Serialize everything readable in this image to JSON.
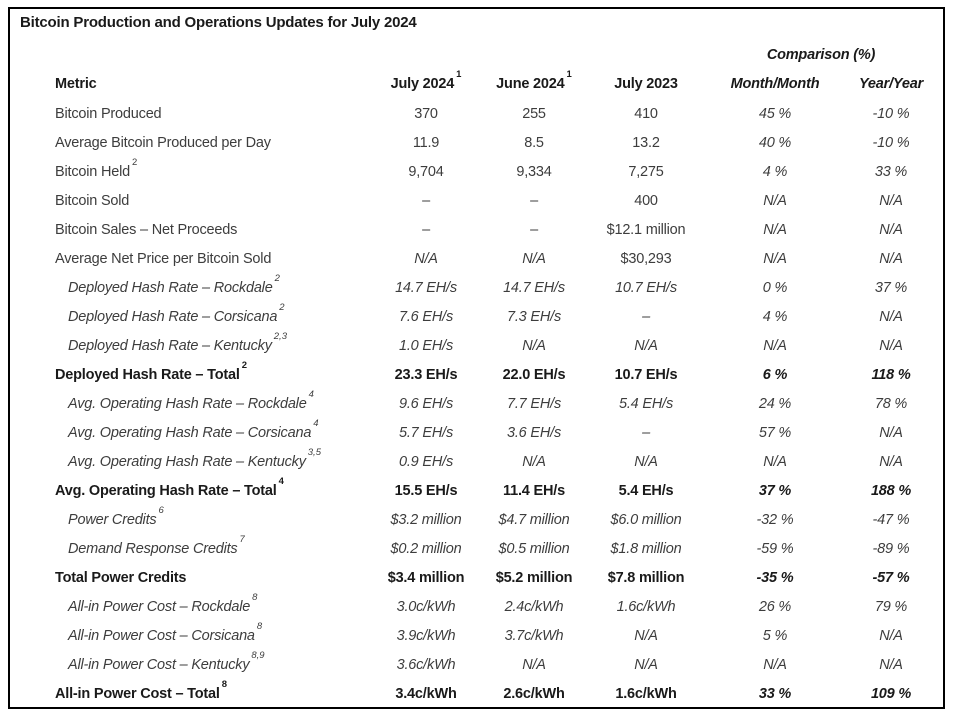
{
  "title": "Bitcoin Production and Operations Updates for July 2024",
  "table": {
    "comparison_header": "Comparison (%)",
    "columns": [
      {
        "label": "Metric",
        "sup": ""
      },
      {
        "label": "July 2024",
        "sup": "1"
      },
      {
        "label": "June 2024",
        "sup": "1"
      },
      {
        "label": "July 2023",
        "sup": ""
      },
      {
        "label": "Month/Month",
        "sup": ""
      },
      {
        "label": "Year/Year",
        "sup": ""
      }
    ],
    "rows": [
      {
        "metric": "Bitcoin Produced",
        "sup": "",
        "style": "regular",
        "values": [
          "370",
          "255",
          "410",
          "45 %",
          "-10 %"
        ]
      },
      {
        "metric": "Average Bitcoin Produced per Day",
        "sup": "",
        "style": "regular",
        "values": [
          "11.9",
          "8.5",
          "13.2",
          "40 %",
          "-10 %"
        ]
      },
      {
        "metric": "Bitcoin Held",
        "sup": "2",
        "style": "regular",
        "values": [
          "9,704",
          "9,334",
          "7,275",
          "4 %",
          "33 %"
        ]
      },
      {
        "metric": "Bitcoin Sold",
        "sup": "",
        "style": "regular",
        "values": [
          "–",
          "–",
          "400",
          "N/A",
          "N/A"
        ]
      },
      {
        "metric": "Bitcoin Sales – Net Proceeds",
        "sup": "",
        "style": "regular",
        "values": [
          "–",
          "–",
          "$12.1 million",
          "N/A",
          "N/A"
        ]
      },
      {
        "metric": "Average Net Price per Bitcoin Sold",
        "sup": "",
        "style": "regular",
        "values": [
          "N/A",
          "N/A",
          "$30,293",
          "N/A",
          "N/A"
        ]
      },
      {
        "metric": "Deployed Hash Rate – Rockdale",
        "sup": "2",
        "style": "sub",
        "values": [
          "14.7 EH/s",
          "14.7 EH/s",
          "10.7 EH/s",
          "0 %",
          "37 %"
        ]
      },
      {
        "metric": "Deployed Hash Rate – Corsicana",
        "sup": "2",
        "style": "sub",
        "values": [
          "7.6 EH/s",
          "7.3 EH/s",
          "–",
          "4 %",
          "N/A"
        ]
      },
      {
        "metric": "Deployed Hash Rate – Kentucky",
        "sup": "2,3",
        "style": "sub",
        "values": [
          "1.0 EH/s",
          "N/A",
          "N/A",
          "N/A",
          "N/A"
        ]
      },
      {
        "metric": "Deployed Hash Rate – Total",
        "sup": "2",
        "style": "total",
        "values": [
          "23.3 EH/s",
          "22.0 EH/s",
          "10.7 EH/s",
          "6 %",
          "118 %"
        ]
      },
      {
        "metric": "Avg. Operating Hash Rate – Rockdale",
        "sup": "4",
        "style": "sub",
        "values": [
          "9.6 EH/s",
          "7.7 EH/s",
          "5.4 EH/s",
          "24 %",
          "78 %"
        ]
      },
      {
        "metric": "Avg. Operating Hash Rate – Corsicana",
        "sup": "4",
        "style": "sub",
        "values": [
          "5.7 EH/s",
          "3.6 EH/s",
          "–",
          "57 %",
          "N/A"
        ]
      },
      {
        "metric": "Avg. Operating Hash Rate – Kentucky",
        "sup": "3,5",
        "style": "sub",
        "values": [
          "0.9 EH/s",
          "N/A",
          "N/A",
          "N/A",
          "N/A"
        ]
      },
      {
        "metric": "Avg. Operating Hash Rate – Total",
        "sup": "4",
        "style": "total",
        "values": [
          "15.5 EH/s",
          "11.4 EH/s",
          "5.4 EH/s",
          "37 %",
          "188 %"
        ]
      },
      {
        "metric": "Power Credits",
        "sup": "6",
        "style": "sub",
        "values": [
          "$3.2 million",
          "$4.7 million",
          "$6.0 million",
          "-32 %",
          "-47 %"
        ]
      },
      {
        "metric": "Demand Response Credits",
        "sup": "7",
        "style": "sub",
        "values": [
          "$0.2 million",
          "$0.5 million",
          "$1.8 million",
          "-59 %",
          "-89 %"
        ]
      },
      {
        "metric": "Total Power Credits",
        "sup": "",
        "style": "total",
        "values": [
          "$3.4 million",
          "$5.2 million",
          "$7.8 million",
          "-35 %",
          "-57 %"
        ]
      },
      {
        "metric": "All-in Power Cost – Rockdale",
        "sup": "8",
        "style": "sub",
        "values": [
          "3.0c/kWh",
          "2.4c/kWh",
          "1.6c/kWh",
          "26 %",
          "79 %"
        ]
      },
      {
        "metric": "All-in Power Cost – Corsicana",
        "sup": "8",
        "style": "sub",
        "values": [
          "3.9c/kWh",
          "3.7c/kWh",
          "N/A",
          "5 %",
          "N/A"
        ]
      },
      {
        "metric": "All-in Power Cost – Kentucky",
        "sup": "8,9",
        "style": "sub",
        "values": [
          "3.6c/kWh",
          "N/A",
          "N/A",
          "N/A",
          "N/A"
        ]
      },
      {
        "metric": "All-in Power Cost – Total",
        "sup": "8",
        "style": "total",
        "values": [
          "3.4c/kWh",
          "2.6c/kWh",
          "1.6c/kWh",
          "33 %",
          "109 %"
        ]
      }
    ]
  }
}
